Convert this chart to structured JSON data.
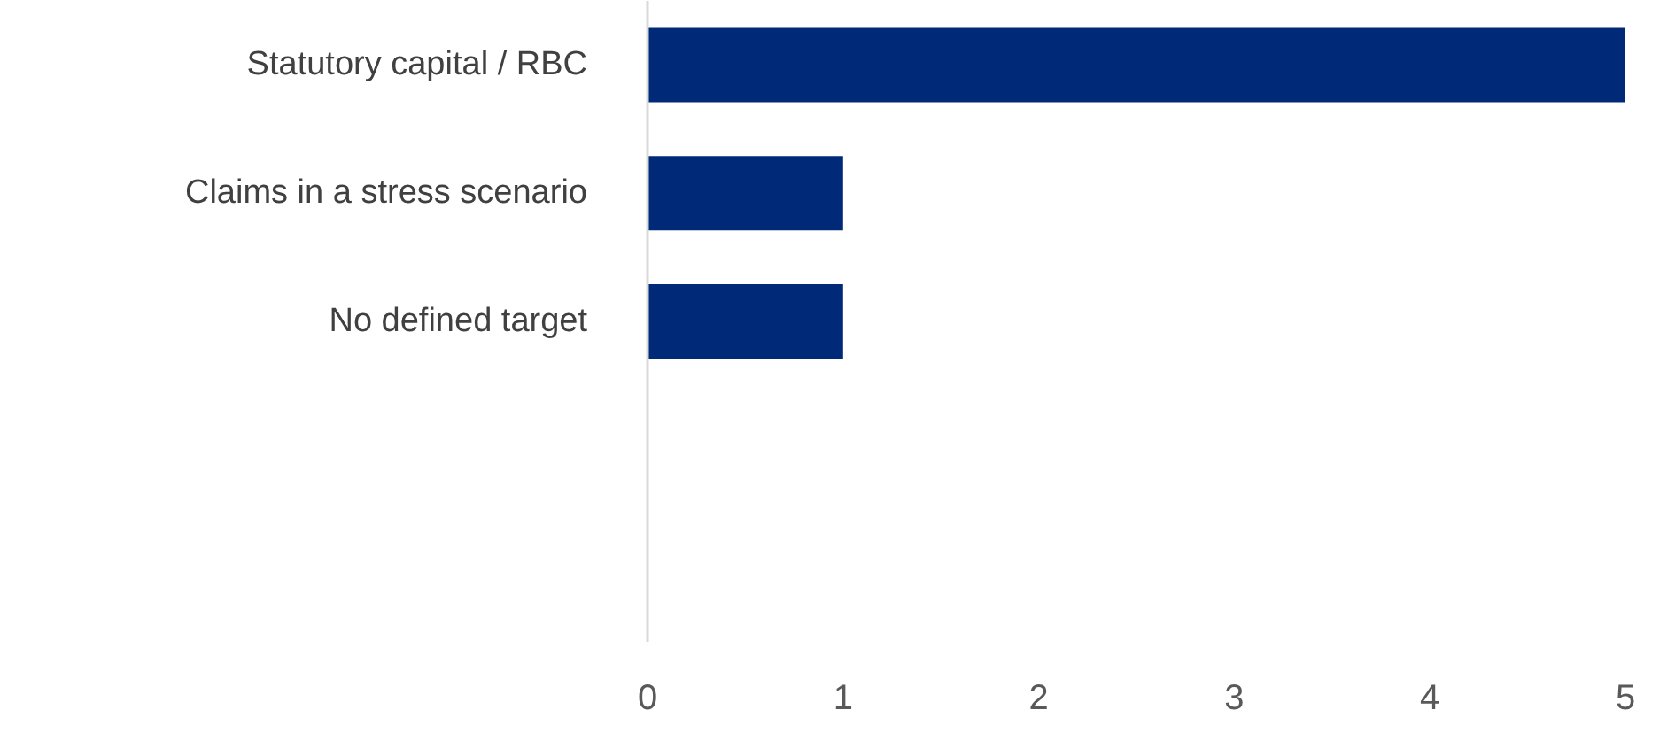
{
  "chart_data": {
    "type": "bar",
    "orientation": "horizontal",
    "categories": [
      "Statutory capital / RBC",
      "Claims in a stress scenario",
      "No defined target",
      null,
      null
    ],
    "values": [
      5,
      1,
      1,
      null,
      null
    ],
    "color": "#002a77",
    "xlim": [
      0,
      5
    ],
    "xticks": [
      0,
      1,
      2,
      3,
      4,
      5
    ],
    "grid": false
  }
}
